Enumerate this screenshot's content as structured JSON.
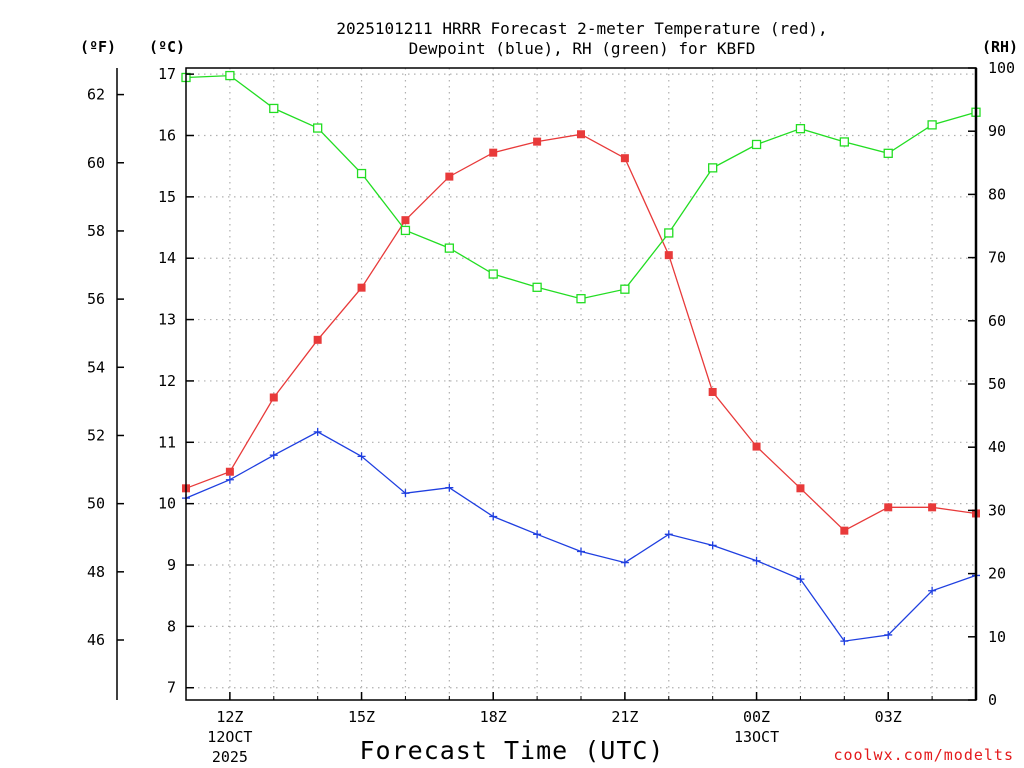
{
  "chart_data": {
    "type": "line",
    "title_line1": "2025101211 HRRR Forecast 2-meter Temperature (red),",
    "title_line2": "Dewpoint (blue), RH (green) for KBFD",
    "xlabel": "Forecast Time (UTC)",
    "credit": "coolwx.com/modelts",
    "unit_f": "(ºF)",
    "unit_c": "(ºC)",
    "unit_rh": "(RH)",
    "x_hours": [
      11,
      12,
      13,
      14,
      15,
      16,
      17,
      18,
      19,
      20,
      21,
      22,
      23,
      24,
      25,
      26,
      27,
      28,
      29
    ],
    "xlim": [
      11,
      29
    ],
    "x_ticks": [
      {
        "hour": 12,
        "label": "12Z",
        "sub1": "12OCT",
        "sub2": "2025"
      },
      {
        "hour": 15,
        "label": "15Z",
        "sub1": "",
        "sub2": ""
      },
      {
        "hour": 18,
        "label": "18Z",
        "sub1": "",
        "sub2": ""
      },
      {
        "hour": 21,
        "label": "21Z",
        "sub1": "",
        "sub2": ""
      },
      {
        "hour": 24,
        "label": "00Z",
        "sub1": "13OCT",
        "sub2": ""
      },
      {
        "hour": 27,
        "label": "03Z",
        "sub1": "",
        "sub2": ""
      }
    ],
    "left_axis_c": {
      "range": [
        6.8,
        17.1
      ],
      "ticks": [
        "7",
        "8",
        "9",
        "10",
        "11",
        "12",
        "13",
        "14",
        "15",
        "16",
        "17"
      ]
    },
    "far_left_axis_f": {
      "ticks": [
        "46",
        "48",
        "50",
        "52",
        "54",
        "56",
        "58",
        "60",
        "62"
      ]
    },
    "right_axis_rh": {
      "range": [
        0,
        100
      ],
      "ticks": [
        "0",
        "10",
        "20",
        "30",
        "40",
        "50",
        "60",
        "70",
        "80",
        "90",
        "100"
      ]
    },
    "series": [
      {
        "name": "Temperature",
        "axis": "C",
        "color": "#e83a3a",
        "marker": "filled-square",
        "values": [
          10.25,
          10.52,
          11.73,
          12.67,
          13.52,
          14.62,
          15.33,
          15.72,
          15.9,
          16.02,
          15.63,
          14.05,
          11.82,
          10.93,
          10.25,
          9.56,
          9.94,
          9.94,
          9.84
        ]
      },
      {
        "name": "Dewpoint",
        "axis": "C",
        "color": "#1f3fe0",
        "marker": "plus",
        "values": [
          10.09,
          10.39,
          10.79,
          11.17,
          10.77,
          10.17,
          10.26,
          9.79,
          9.5,
          9.22,
          9.04,
          9.5,
          9.32,
          9.07,
          8.77,
          7.76,
          7.86,
          8.58,
          8.83
        ]
      },
      {
        "name": "RH",
        "axis": "RH",
        "color": "#22dd22",
        "marker": "open-square",
        "values": [
          98.5,
          98.8,
          93.6,
          90.5,
          83.3,
          74.3,
          71.5,
          67.4,
          65.3,
          63.5,
          65.0,
          73.9,
          84.2,
          87.9,
          90.4,
          88.3,
          86.5,
          91.0,
          93.0
        ]
      }
    ],
    "grid": true
  }
}
